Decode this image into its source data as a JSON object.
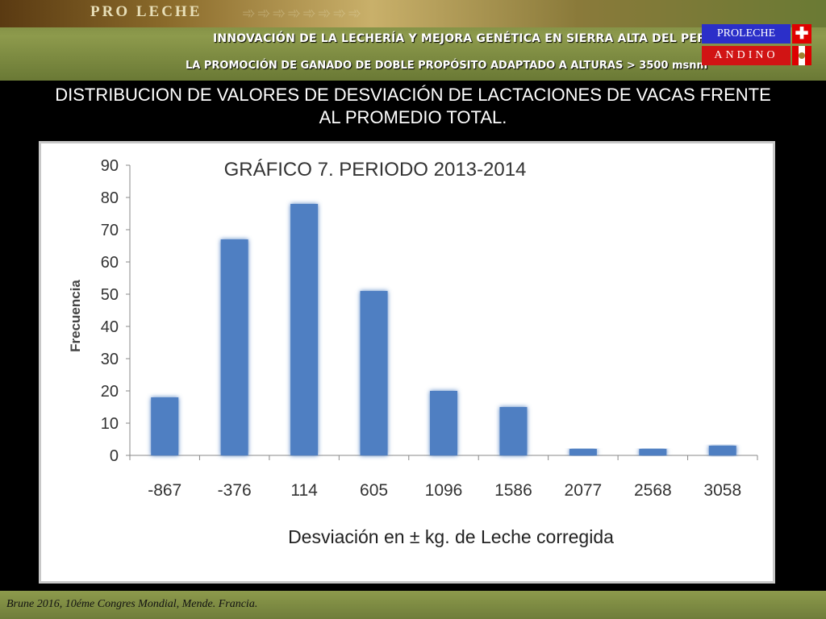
{
  "header": {
    "brand": "PRO LECHE",
    "tagline1": "INNOVACIÓN DE LA LECHERÍA Y MEJORA GENÉTICA EN SIERRA ALTA DEL PERÚ",
    "tagline2": "LA PROMOCIÓN DE GANADO DE DOBLE PROPÓSITO ADAPTADO A ALTURAS > 3500 msnm",
    "logo_top": "PROLECHE",
    "logo_bottom": "ANDINO"
  },
  "slide_title": "DISTRIBUCION DE VALORES DE DESVIACIÓN DE LACTACIONES DE VACAS FRENTE AL PROMEDIO TOTAL.",
  "footer": "Brune 2016, 10éme Congres Mondial, Mende. Francia.",
  "colors": {
    "bar": "#4f7fc2",
    "accent": "#2b2fc9"
  },
  "chart_data": {
    "type": "bar",
    "title": "GRÁFICO 7. PERIODO 2013-2014",
    "xlabel": "Desviación en ± kg. de Leche corregida",
    "ylabel": "Frecuencia",
    "categories": [
      "-867",
      "-376",
      "114",
      "605",
      "1096",
      "1586",
      "2077",
      "2568",
      "3058"
    ],
    "values": [
      18,
      67,
      78,
      51,
      20,
      15,
      2,
      2,
      3
    ],
    "ylim": [
      0,
      90
    ],
    "yticks": [
      0,
      10,
      20,
      30,
      40,
      50,
      60,
      70,
      80,
      90
    ],
    "grid": false
  }
}
